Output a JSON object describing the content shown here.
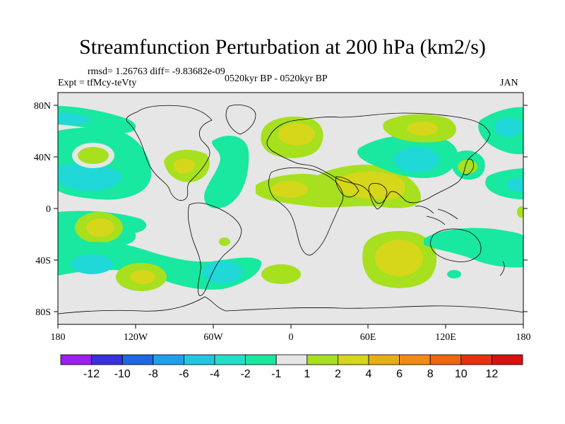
{
  "title": "Streamfunction Perturbation at 200 hPa (km2/s)",
  "rmsd_line": "rmsd= 1.26763 diff= -9.83682e-09",
  "expt_line": "Expt = tfMcy-teVty",
  "period_line": "0520kyr BP - 0520kyr BP",
  "month": "JAN",
  "lat_labels": [
    "80N",
    "40N",
    "0",
    "40S",
    "80S"
  ],
  "lon_labels": [
    "180",
    "120W",
    "60W",
    "0",
    "60E",
    "120E",
    "180"
  ],
  "colorbar": {
    "labels": [
      "-12",
      "-10",
      "-8",
      "-6",
      "-4",
      "-2",
      "-1",
      "1",
      "2",
      "4",
      "6",
      "8",
      "10",
      "12"
    ],
    "colors": [
      "#9b1ff0",
      "#3a30e0",
      "#1f68e0",
      "#1fa0e8",
      "#1fc8e0",
      "#20e0c8",
      "#18e8a0",
      "#e6e6e6",
      "#a6e01f",
      "#d6d61a",
      "#e6b014",
      "#f08c14",
      "#f06414",
      "#e83010",
      "#d81010"
    ]
  },
  "colors": {
    "ocean_background": "#e6e6e6",
    "positive_small": "#a6e01f",
    "positive_mid": "#d6d61a",
    "negative_small": "#18e8a0",
    "negative_mid": "#20d8d8",
    "negative_strong": "#1fc0e8"
  }
}
